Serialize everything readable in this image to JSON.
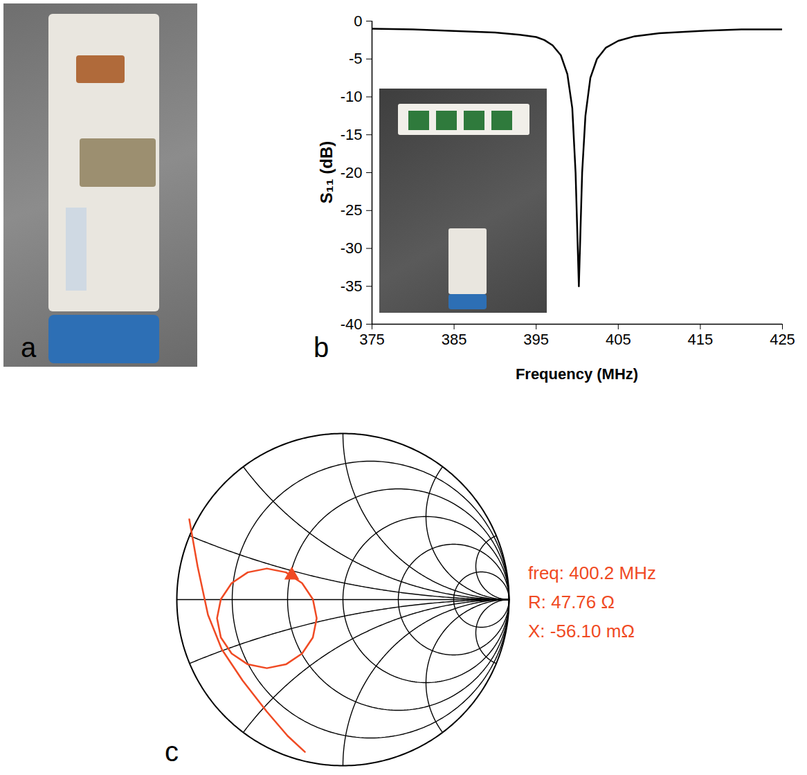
{
  "photo_panel": {
    "panel_label": "a"
  },
  "chart_data": [
    {
      "panel_label": "b",
      "type": "line",
      "x_label": "Frequency (MHz)",
      "y_label": "S₁₁ (dB)",
      "x": [
        375,
        380,
        385,
        390,
        393,
        395,
        396,
        397,
        398,
        398.8,
        399.4,
        399.8,
        400.2,
        400.6,
        401,
        401.6,
        402.4,
        403.5,
        405,
        407,
        410,
        415,
        420,
        425
      ],
      "values": [
        -1.0,
        -1.1,
        -1.3,
        -1.5,
        -1.8,
        -2.1,
        -2.5,
        -3.2,
        -4.5,
        -7,
        -11.5,
        -20,
        -35,
        -20,
        -12.5,
        -7.5,
        -5,
        -3.5,
        -2.6,
        -2,
        -1.6,
        -1.3,
        -1.1,
        -1.1
      ],
      "color": "#000000",
      "marker": "none",
      "line_style": "solid",
      "grid": false,
      "xlim": [
        375,
        425
      ],
      "ylim": [
        -40,
        0
      ],
      "xticks": [
        375,
        385,
        395,
        405,
        415,
        425
      ],
      "yticks": [
        -40,
        -35,
        -30,
        -25,
        -20,
        -15,
        -10,
        -5,
        0
      ]
    },
    {
      "panel_label": "c",
      "type": "smith",
      "grid": true,
      "tick_labels": false,
      "xlim": [
        -1,
        1
      ],
      "ylim": [
        -1,
        1
      ],
      "color": "#f04a23",
      "line_style": "solid",
      "series": [
        {
          "x": [
            -0.158,
            -0.181,
            -0.246,
            -0.343,
            -0.458,
            -0.573,
            -0.67,
            -0.735,
            -0.758,
            -0.735,
            -0.67,
            -0.573,
            -0.458,
            -0.343,
            -0.246,
            -0.181,
            -0.158
          ],
          "y": [
            -0.113,
            0.002,
            0.099,
            0.164,
            0.187,
            0.164,
            0.099,
            0.002,
            -0.113,
            -0.228,
            -0.325,
            -0.39,
            -0.413,
            -0.39,
            -0.325,
            -0.228,
            -0.113
          ]
        },
        {
          "x": [
            -0.925,
            -0.875,
            -0.8125,
            -0.729,
            -0.604,
            -0.458,
            -0.333,
            -0.229
          ],
          "y": [
            0.483,
            0.2,
            -0.092,
            -0.3,
            -0.4875,
            -0.675,
            -0.821,
            -0.917
          ]
        }
      ],
      "marker": "triangle",
      "marker_point": {
        "x": -0.308,
        "y": 0.147
      },
      "annotations": [
        "freq: 400.2 MHz",
        "R: 47.76 Ω",
        "X: -56.10 mΩ"
      ]
    }
  ]
}
